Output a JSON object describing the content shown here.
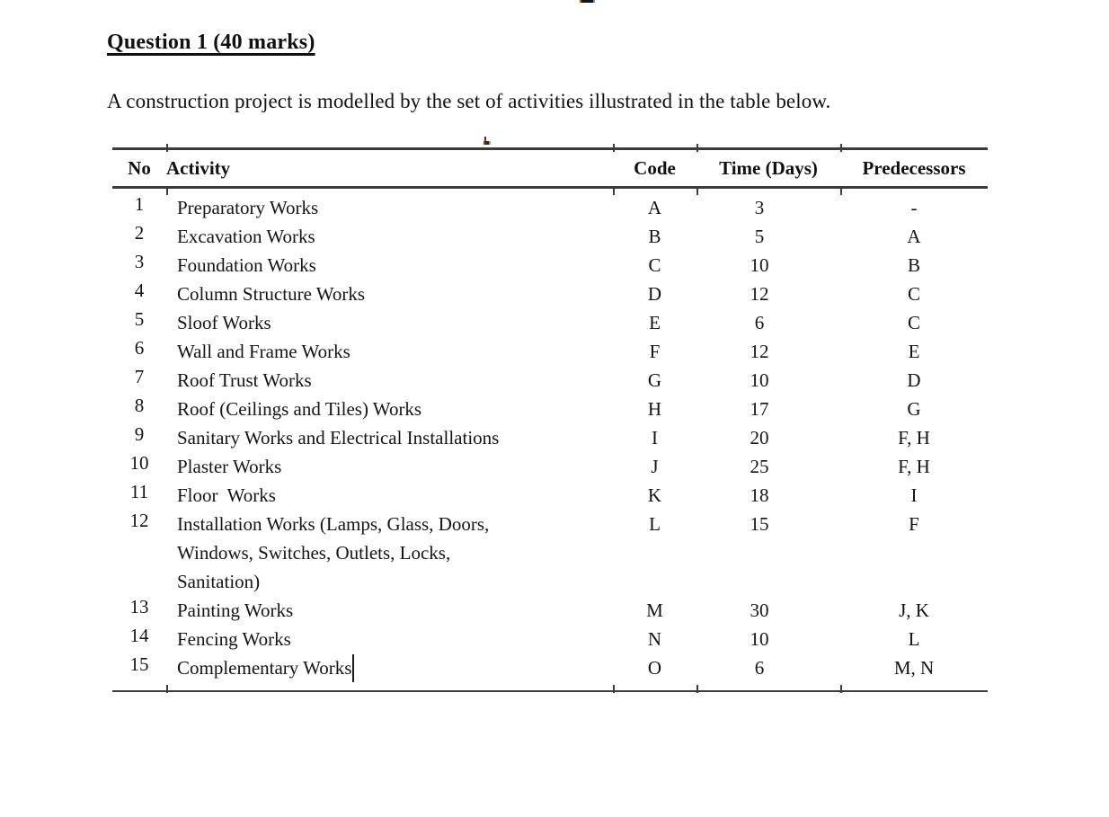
{
  "heading": {
    "title": "Question 1 (40 marks)"
  },
  "intro": {
    "text": "A construction project is modelled by the set of activities illustrated in the table below."
  },
  "table": {
    "headers": {
      "no": "No",
      "activity": "Activity",
      "code": "Code",
      "time": "Time (Days)",
      "predecessors": "Predecessors"
    },
    "rows": [
      {
        "no": "1",
        "activity": "Preparatory Works",
        "code": "A",
        "time": "3",
        "predecessors": "-"
      },
      {
        "no": "2",
        "activity": "Excavation Works",
        "code": "B",
        "time": "5",
        "predecessors": "A"
      },
      {
        "no": "3",
        "activity": "Foundation Works",
        "code": "C",
        "time": "10",
        "predecessors": "B"
      },
      {
        "no": "4",
        "activity": "Column Structure Works",
        "code": "D",
        "time": "12",
        "predecessors": "C"
      },
      {
        "no": "5",
        "activity": "Sloof Works",
        "code": "E",
        "time": "6",
        "predecessors": "C"
      },
      {
        "no": "6",
        "activity": "Wall and Frame Works",
        "code": "F",
        "time": "12",
        "predecessors": "E"
      },
      {
        "no": "7",
        "activity": "Roof Trust Works",
        "code": "G",
        "time": "10",
        "predecessors": "D"
      },
      {
        "no": "8",
        "activity": "Roof (Ceilings and Tiles) Works",
        "code": "H",
        "time": "17",
        "predecessors": "G"
      },
      {
        "no": "9",
        "activity": "Sanitary Works and Electrical Installations",
        "code": "I",
        "time": "20",
        "predecessors": "F, H"
      },
      {
        "no": "10",
        "activity": "Plaster Works",
        "code": "J",
        "time": "25",
        "predecessors": "F, H"
      },
      {
        "no": "11",
        "activity": "Floor  Works",
        "code": "K",
        "time": "18",
        "predecessors": "I"
      },
      {
        "no": "12",
        "activity": "Installation Works (Lamps, Glass, Doors,\nWindows, Switches, Outlets, Locks,\nSanitation)",
        "code": "L",
        "time": "15",
        "predecessors": "F"
      },
      {
        "no": "13",
        "activity": "Painting Works",
        "code": "M",
        "time": "30",
        "predecessors": "J, K"
      },
      {
        "no": "14",
        "activity": "Fencing Works",
        "code": "N",
        "time": "10",
        "predecessors": "L"
      },
      {
        "no": "15",
        "activity": "Complementary Works",
        "code": "O",
        "time": "6",
        "predecessors": "M, N"
      }
    ]
  }
}
